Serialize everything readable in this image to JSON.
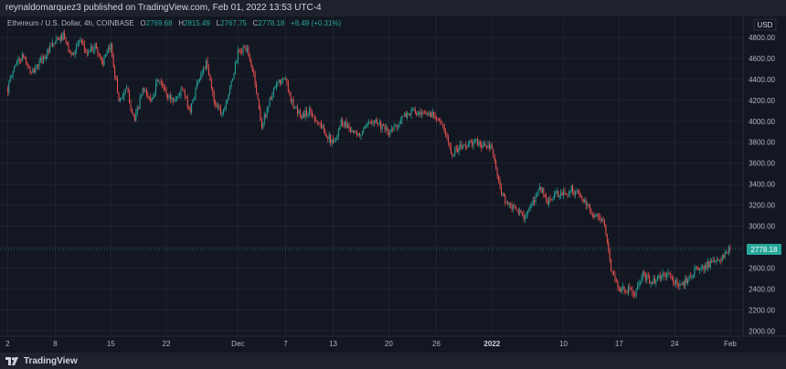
{
  "header": {
    "published": "reynaldomarquez3 published on TradingView.com, Feb 01, 2022 13:53 UTC-4"
  },
  "legend": {
    "symbol": "Ethereum / U.S. Dollar, 4h, COINBASE",
    "open_label": "O",
    "open": "2769.68",
    "high_label": "H",
    "high": "2815.49",
    "low_label": "L",
    "low": "2767.75",
    "close_label": "C",
    "close": "2778.18",
    "change": "+8.49 (+0.31%)"
  },
  "footer": {
    "brand": "TradingView"
  },
  "colors": {
    "up": "#26a69a",
    "down": "#ef5350",
    "background": "#131722",
    "grid": "#1f2430"
  },
  "chart_data": {
    "type": "candlestick",
    "currency_label": "USD",
    "last_price_label": "2778.18",
    "y_ticks": [
      "2000.00",
      "2200.00",
      "2400.00",
      "2600.00",
      "2800.00",
      "3000.00",
      "3200.00",
      "3400.00",
      "3600.00",
      "3800.00",
      "4000.00",
      "4200.00",
      "4400.00",
      "4600.00",
      "4800.00"
    ],
    "ylim": [
      1950,
      5000
    ],
    "x_ticks": [
      "2",
      "8",
      "15",
      "22",
      "Dec",
      "7",
      "13",
      "20",
      "26",
      "2022",
      "10",
      "17",
      "24",
      "Feb"
    ],
    "x_ticks_bold": [
      "2022"
    ],
    "x_tick_days": [
      0,
      6,
      13,
      20,
      29,
      35,
      41,
      48,
      54,
      61,
      70,
      77,
      84,
      91
    ],
    "xlim": [
      -0.5,
      92.5
    ],
    "start_date": "2021-11-02",
    "path_points": [
      [
        0,
        4310
      ],
      [
        1,
        4560
      ],
      [
        2,
        4620
      ],
      [
        3,
        4450
      ],
      [
        4,
        4560
      ],
      [
        5,
        4650
      ],
      [
        6,
        4760
      ],
      [
        7,
        4810
      ],
      [
        8,
        4620
      ],
      [
        9,
        4760
      ],
      [
        10,
        4650
      ],
      [
        11,
        4720
      ],
      [
        12,
        4560
      ],
      [
        13,
        4720
      ],
      [
        14,
        4200
      ],
      [
        15,
        4300
      ],
      [
        16,
        4000
      ],
      [
        17,
        4300
      ],
      [
        18,
        4200
      ],
      [
        19,
        4400
      ],
      [
        20,
        4250
      ],
      [
        21,
        4200
      ],
      [
        22,
        4300
      ],
      [
        23,
        4100
      ],
      [
        24,
        4400
      ],
      [
        25,
        4550
      ],
      [
        26,
        4200
      ],
      [
        27,
        4080
      ],
      [
        28,
        4300
      ],
      [
        29,
        4650
      ],
      [
        30,
        4700
      ],
      [
        31,
        4450
      ],
      [
        32,
        3950
      ],
      [
        33,
        4200
      ],
      [
        34,
        4360
      ],
      [
        35,
        4400
      ],
      [
        36,
        4130
      ],
      [
        37,
        4050
      ],
      [
        38,
        4100
      ],
      [
        39,
        4000
      ],
      [
        40,
        3900
      ],
      [
        41,
        3780
      ],
      [
        42,
        4000
      ],
      [
        43,
        3950
      ],
      [
        44,
        3850
      ],
      [
        45,
        3920
      ],
      [
        46,
        4030
      ],
      [
        47,
        3960
      ],
      [
        48,
        3880
      ],
      [
        49,
        3970
      ],
      [
        50,
        4050
      ],
      [
        51,
        4100
      ],
      [
        52,
        4050
      ],
      [
        53,
        4070
      ],
      [
        54,
        4060
      ],
      [
        55,
        3900
      ],
      [
        56,
        3700
      ],
      [
        57,
        3750
      ],
      [
        58,
        3780
      ],
      [
        59,
        3800
      ],
      [
        60,
        3760
      ],
      [
        61,
        3740
      ],
      [
        62,
        3350
      ],
      [
        63,
        3200
      ],
      [
        64,
        3150
      ],
      [
        65,
        3100
      ],
      [
        66,
        3180
      ],
      [
        67,
        3380
      ],
      [
        68,
        3230
      ],
      [
        69,
        3300
      ],
      [
        70,
        3300
      ],
      [
        71,
        3350
      ],
      [
        72,
        3300
      ],
      [
        73,
        3180
      ],
      [
        74,
        3100
      ],
      [
        75,
        3060
      ],
      [
        76,
        2600
      ],
      [
        77,
        2400
      ],
      [
        78,
        2400
      ],
      [
        79,
        2350
      ],
      [
        80,
        2530
      ],
      [
        81,
        2470
      ],
      [
        82,
        2500
      ],
      [
        83,
        2550
      ],
      [
        84,
        2460
      ],
      [
        85,
        2440
      ],
      [
        86,
        2540
      ],
      [
        87,
        2590
      ],
      [
        88,
        2630
      ],
      [
        89,
        2640
      ],
      [
        90,
        2700
      ],
      [
        91,
        2778
      ]
    ]
  }
}
